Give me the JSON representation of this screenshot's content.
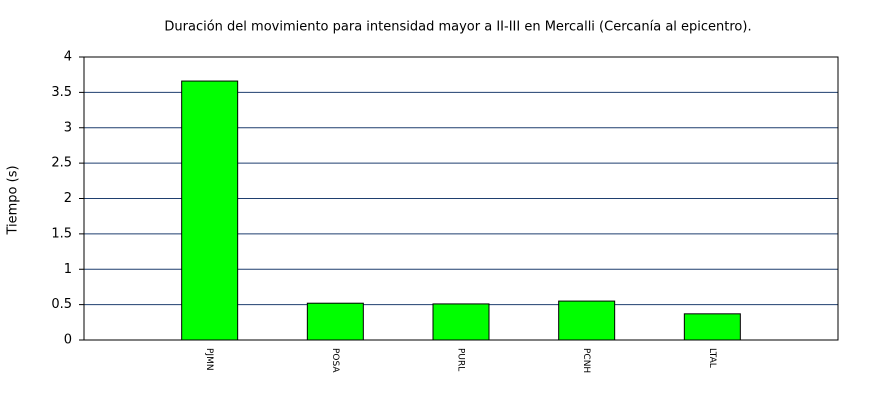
{
  "chart_data": {
    "type": "bar",
    "title": "Duración del movimiento para intensidad mayor a II-III en Mercalli (Cercanía al epicentro).",
    "y_label": "Tiempo (s)",
    "categories": [
      "PJMN",
      "POSA",
      "PURL",
      "PCNH",
      "LTAL"
    ],
    "values": [
      3.66,
      0.52,
      0.51,
      0.55,
      0.37
    ],
    "color": "#00ff00",
    "ylim": [
      0,
      4
    ],
    "yticks": [
      0,
      0.5,
      1,
      1.5,
      2,
      2.5,
      3,
      3.5,
      4
    ],
    "grid": true
  }
}
